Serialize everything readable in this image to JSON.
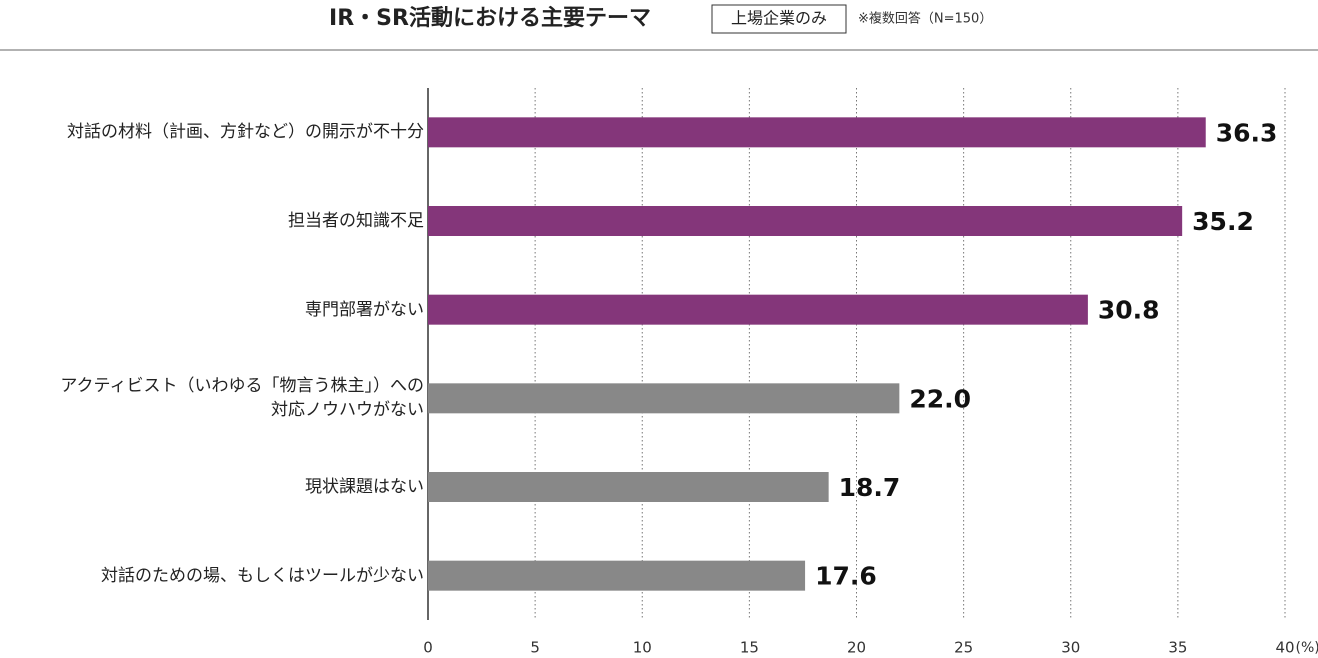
{
  "chart_data": {
    "type": "bar",
    "orientation": "horizontal",
    "title": "IR・SR活動における主要テーマ",
    "badge": "上場企業のみ",
    "note": "※複数回答（N=150）",
    "categories": [
      "対話の材料（計画、方針など）の開示が不十分",
      "担当者の知識不足",
      "専門部署がない",
      "アクティビスト（いわゆる「物言う株主」）への\n対応ノウハウがない",
      "現状課題はない",
      "対話のための場、もしくはツールが少ない"
    ],
    "values": [
      36.3,
      35.2,
      30.8,
      22.0,
      18.7,
      17.6
    ],
    "value_labels": [
      "36.3",
      "35.2",
      "30.8",
      "22.0",
      "18.7",
      "17.6"
    ],
    "colors": [
      "#84367a",
      "#84367a",
      "#84367a",
      "#888888",
      "#888888",
      "#888888"
    ],
    "xlim": [
      0,
      40
    ],
    "xticks": [
      0,
      5,
      10,
      15,
      20,
      25,
      30,
      35,
      40
    ],
    "x_unit": "(%)",
    "grid": true
  }
}
